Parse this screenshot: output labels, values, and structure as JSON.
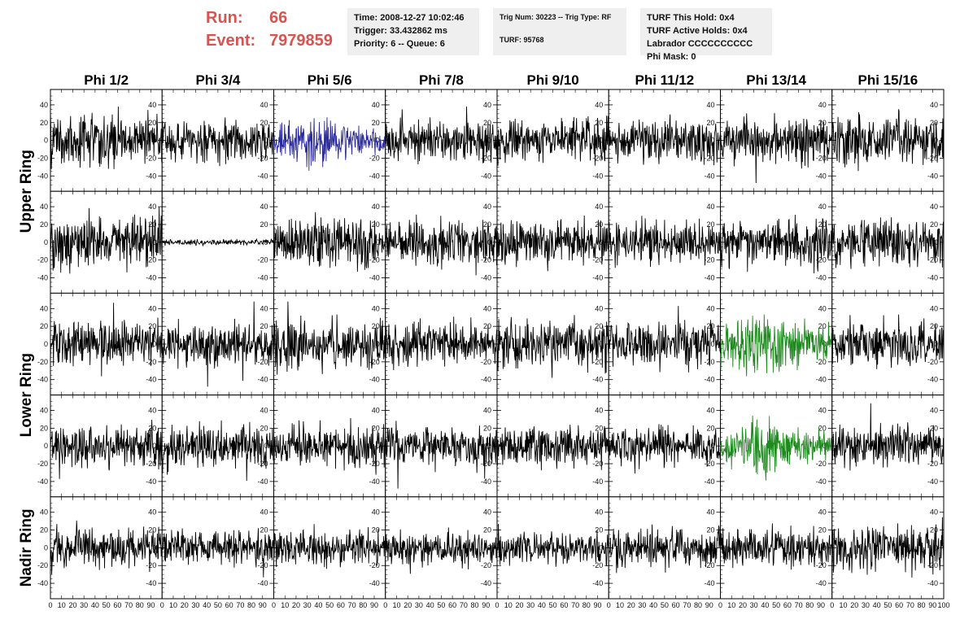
{
  "header": {
    "run_label": "Run:",
    "run_value": "66",
    "event_label": "Event:",
    "event_value": "7979859",
    "accent_color": "#d9534f"
  },
  "info_boxes": {
    "time_box": [
      "Time: 2008-12-27 10:02:46",
      "Trigger: 33.432862 ms",
      "Priority: 6 -- Queue: 6"
    ],
    "trig_box": [
      "Trig Num: 30223 -- Trig Type: RF",
      "",
      "TURF: 95768"
    ],
    "turf_box": [
      "TURF This Hold: 0x4",
      "TURF Active Holds: 0x4",
      "Labrador CCCCCCCCCC",
      "Phi Mask: 0"
    ]
  },
  "chart_data": {
    "type": "line",
    "columns": [
      "Phi 1/2",
      "Phi 3/4",
      "Phi 5/6",
      "Phi 7/8",
      "Phi 9/10",
      "Phi 11/12",
      "Phi 13/14",
      "Phi 15/16"
    ],
    "ring_labels": [
      {
        "label": "Upper Ring",
        "rows": [
          0,
          1
        ]
      },
      {
        "label": "Lower Ring",
        "rows": [
          2,
          3
        ]
      },
      {
        "label": "Nadir Ring",
        "rows": [
          4
        ]
      }
    ],
    "xlim": [
      0,
      100
    ],
    "ylim": [
      -50,
      50
    ],
    "y_ticks": [
      -40,
      -20,
      0,
      20,
      40
    ],
    "x_ticks": [
      0,
      10,
      20,
      30,
      40,
      50,
      60,
      70,
      80,
      90
    ],
    "x_last_tick": "100",
    "colors": {
      "default": "#000000",
      "triggered": "#2b2b9a",
      "highlighted": "#1e8a1e"
    },
    "panels": [
      [
        {
          "amp": 18,
          "color": "default"
        },
        {
          "amp": 14,
          "color": "default"
        },
        {
          "amp": 17,
          "color": "triggered"
        },
        {
          "amp": 14,
          "color": "default"
        },
        {
          "amp": 15,
          "color": "default"
        },
        {
          "amp": 14,
          "color": "default"
        },
        {
          "amp": 16,
          "color": "default"
        },
        {
          "amp": 17,
          "color": "default"
        }
      ],
      [
        {
          "amp": 19,
          "color": "default"
        },
        {
          "amp": 2,
          "color": "default"
        },
        {
          "amp": 17,
          "color": "default"
        },
        {
          "amp": 15,
          "color": "default"
        },
        {
          "amp": 15,
          "color": "default"
        },
        {
          "amp": 15,
          "color": "default"
        },
        {
          "amp": 16,
          "color": "default"
        },
        {
          "amp": 15,
          "color": "default"
        }
      ],
      [
        {
          "amp": 16,
          "color": "default"
        },
        {
          "amp": 15,
          "color": "default"
        },
        {
          "amp": 17,
          "color": "default"
        },
        {
          "amp": 15,
          "color": "default"
        },
        {
          "amp": 16,
          "color": "default"
        },
        {
          "amp": 15,
          "color": "default"
        },
        {
          "amp": 22,
          "color": "highlighted"
        },
        {
          "amp": 15,
          "color": "default"
        }
      ],
      [
        {
          "amp": 15,
          "color": "default"
        },
        {
          "amp": 15,
          "color": "default"
        },
        {
          "amp": 15,
          "color": "default"
        },
        {
          "amp": 14,
          "color": "default"
        },
        {
          "amp": 14,
          "color": "default"
        },
        {
          "amp": 13,
          "color": "default"
        },
        {
          "amp": 18,
          "color": "highlighted"
        },
        {
          "amp": 15,
          "color": "default"
        }
      ],
      [
        {
          "amp": 14,
          "color": "default"
        },
        {
          "amp": 11,
          "color": "default"
        },
        {
          "amp": 12,
          "color": "default"
        },
        {
          "amp": 11,
          "color": "default"
        },
        {
          "amp": 11,
          "color": "default"
        },
        {
          "amp": 14,
          "color": "default"
        },
        {
          "amp": 13,
          "color": "default"
        },
        {
          "amp": 16,
          "color": "default"
        }
      ]
    ]
  }
}
